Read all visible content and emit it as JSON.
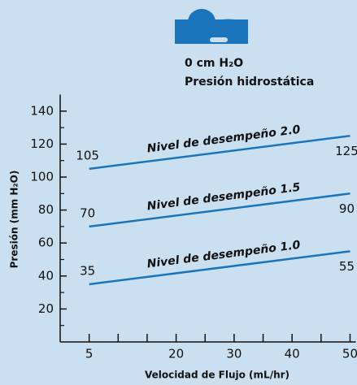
{
  "chart_data": {
    "type": "line",
    "header": [
      "0 cm H₂O",
      "Presión hidrostática"
    ],
    "xlabel": "Velocidad de Flujo (mL/hr)",
    "ylabel": "Presión (mm H₂O)",
    "x": [
      5,
      50
    ],
    "series": [
      {
        "name": "Nivel de desempeño 2.0",
        "color": "#1b75bc",
        "values": [
          105,
          125
        ]
      },
      {
        "name": "Nivel de desempeño 1.5",
        "color": "#1b75bc",
        "values": [
          70,
          90
        ]
      },
      {
        "name": "Nivel de desempeño 1.0",
        "color": "#1b75bc",
        "values": [
          35,
          55
        ]
      }
    ],
    "xlim": [
      0,
      51
    ],
    "xticks": [
      5,
      20,
      30,
      40,
      50
    ],
    "xminor_ticks": [
      10,
      15,
      25,
      35,
      45
    ],
    "ylim": [
      0,
      150
    ],
    "yticks": [
      20,
      40,
      60,
      80,
      100,
      120,
      140
    ],
    "yminor_ticks": [
      10,
      30,
      50,
      70,
      90,
      110,
      130
    ]
  }
}
